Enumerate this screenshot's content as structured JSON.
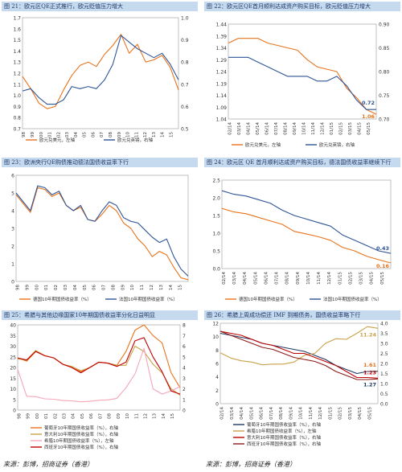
{
  "colors": {
    "orange": "#e8731b",
    "blue": "#2f5597",
    "pink": "#f4a6b7",
    "red": "#c00000",
    "gold": "#c9a24a",
    "darkred": "#8b1a1a",
    "navy": "#1f3864",
    "title_bg": "#c5d9ef"
  },
  "sources": {
    "left": "来源：彭博，招商证券（香港）",
    "right": "来源：彭博，招商证券（香港）"
  },
  "panels": [
    {
      "id": "c21",
      "title": "图 21：欧元区QE正式推行，欧元贬值压力增大"
    },
    {
      "id": "c22",
      "title": "图 22：欧元区QE首月顺利达成资产购买目标，欧元贬值压力增大"
    },
    {
      "id": "c23",
      "title": "图 23：欧洲央行QE购债推动德法国债收益率下行"
    },
    {
      "id": "c24",
      "title": "图 24：欧元区 QE 首月顺利达成资产购买目标，德法国债收益率继续下行"
    },
    {
      "id": "c25",
      "title": "图 25：希腊与其他边缘国家10年期国债收益率分化日益明显"
    },
    {
      "id": "c26",
      "title": "图 26：希腊上周成功偿还 IMF 到期债务，国债收益率略下行"
    }
  ],
  "chart_data": [
    {
      "id": "c21",
      "type": "line",
      "x_ticks": [
        "98",
        "99",
        "00",
        "01",
        "02",
        "03",
        "04",
        "05",
        "06",
        "07",
        "08",
        "09",
        "10",
        "11",
        "12",
        "13",
        "14",
        "15"
      ],
      "left_axis": {
        "ylim": [
          0.7,
          1.7
        ],
        "ticks": [
          "0.7",
          "0.8",
          "0.9",
          "1.0",
          "1.1",
          "1.2",
          "1.3",
          "1.4",
          "1.5",
          "1.6",
          "1.7"
        ]
      },
      "right_axis": {
        "ylim": [
          0.5,
          1.0
        ],
        "ticks": [
          "0.5",
          "0.6",
          "0.7",
          "0.8",
          "0.9",
          "1.0"
        ]
      },
      "series": [
        {
          "name": "欧元兑美元，左轴",
          "color": "orange",
          "axis": "left",
          "values": [
            1.17,
            1.06,
            0.93,
            0.88,
            0.9,
            1.05,
            1.18,
            1.27,
            1.3,
            1.26,
            1.37,
            1.45,
            1.55,
            1.38,
            1.46,
            1.3,
            1.32,
            1.36,
            1.25,
            1.05
          ]
        },
        {
          "name": "欧元兑英镑，右轴",
          "color": "blue",
          "axis": "right",
          "values": [
            0.67,
            0.68,
            0.64,
            0.61,
            0.61,
            0.63,
            0.69,
            0.68,
            0.69,
            0.68,
            0.72,
            0.79,
            0.92,
            0.89,
            0.86,
            0.84,
            0.82,
            0.84,
            0.79,
            0.72
          ]
        }
      ]
    },
    {
      "id": "c22",
      "type": "line",
      "x_ticks": [
        "02/14",
        "03/14",
        "04/14",
        "05/14",
        "06/14",
        "07/14",
        "08/14",
        "09/14",
        "10/14",
        "11/14",
        "12/14",
        "01/15",
        "02/15",
        "03/15",
        "04/15",
        "05/15"
      ],
      "left_axis": {
        "ylim": [
          1.04,
          1.44
        ],
        "ticks": [
          "1.04",
          "1.09",
          "1.14",
          "1.19",
          "1.24",
          "1.29",
          "1.34",
          "1.39",
          "1.44"
        ]
      },
      "right_axis": {
        "ylim": [
          0.7,
          0.9
        ],
        "ticks": [
          "0.70",
          "0.75",
          "0.80",
          "0.85",
          "0.90"
        ]
      },
      "series": [
        {
          "name": "欧元兑美元，左轴",
          "color": "orange",
          "axis": "left",
          "values": [
            1.36,
            1.38,
            1.38,
            1.38,
            1.36,
            1.35,
            1.34,
            1.33,
            1.29,
            1.26,
            1.25,
            1.24,
            1.17,
            1.13,
            1.08,
            1.06
          ]
        },
        {
          "name": "欧元兑英镑，右轴",
          "color": "blue",
          "axis": "right",
          "values": [
            0.83,
            0.83,
            0.83,
            0.82,
            0.81,
            0.8,
            0.79,
            0.79,
            0.79,
            0.78,
            0.78,
            0.79,
            0.77,
            0.74,
            0.72,
            0.72
          ]
        }
      ],
      "annotations": [
        {
          "text": "0.72",
          "color": "blue"
        },
        {
          "text": "1.06",
          "color": "orange"
        }
      ]
    },
    {
      "id": "c23",
      "type": "line",
      "x_ticks": [
        "98",
        "99",
        "00",
        "01",
        "02",
        "03",
        "04",
        "05",
        "06",
        "07",
        "08",
        "09",
        "10",
        "11",
        "12",
        "13",
        "14",
        "15"
      ],
      "left_axis": {
        "ylim": [
          0,
          6
        ],
        "ticks": [
          "0",
          "1",
          "2",
          "3",
          "4",
          "5",
          "6"
        ]
      },
      "series": [
        {
          "name": "德国10年期国债收益率（%）",
          "color": "orange",
          "values": [
            4.9,
            4.4,
            3.9,
            5.3,
            5.2,
            4.8,
            5.0,
            4.3,
            4.0,
            4.2,
            3.5,
            3.4,
            3.8,
            4.3,
            4.0,
            3.3,
            3.0,
            2.4,
            2.0,
            1.4,
            1.7,
            1.5,
            0.8,
            0.2,
            0.1
          ]
        },
        {
          "name": "法国10年期国债收益率（%）",
          "color": "blue",
          "values": [
            5.0,
            4.5,
            4.0,
            5.4,
            5.3,
            4.9,
            5.1,
            4.3,
            4.0,
            4.3,
            3.5,
            3.4,
            4.0,
            4.5,
            4.3,
            3.6,
            3.4,
            3.3,
            2.9,
            2.5,
            2.2,
            2.4,
            1.4,
            0.7,
            0.3
          ]
        }
      ]
    },
    {
      "id": "c24",
      "type": "line",
      "x_ticks": [
        "02/14",
        "03/14",
        "04/14",
        "05/14",
        "06/14",
        "07/14",
        "08/14",
        "09/14",
        "10/14",
        "11/14",
        "12/14",
        "01/15",
        "02/15",
        "03/15",
        "04/15",
        "05/15"
      ],
      "left_axis": {
        "ylim": [
          0,
          2.5
        ],
        "ticks": [
          "0.0",
          "0.5",
          "1.0",
          "1.5",
          "2.0",
          "2.5"
        ]
      },
      "series": [
        {
          "name": "德国10年期国债收益率（%）",
          "color": "orange",
          "values": [
            1.7,
            1.6,
            1.55,
            1.45,
            1.35,
            1.25,
            1.05,
            0.98,
            0.9,
            0.8,
            0.6,
            0.5,
            0.35,
            0.25,
            0.16
          ]
        },
        {
          "name": "法国10年期国债收益率（%）",
          "color": "blue",
          "values": [
            2.2,
            2.1,
            2.05,
            1.95,
            1.85,
            1.65,
            1.5,
            1.4,
            1.3,
            1.2,
            0.95,
            0.8,
            0.65,
            0.5,
            0.43
          ]
        }
      ],
      "annotations": [
        {
          "text": "0.43",
          "color": "blue"
        },
        {
          "text": "0.16",
          "color": "orange"
        }
      ]
    },
    {
      "id": "c25",
      "type": "line",
      "x_ticks": [
        "98",
        "99",
        "00",
        "01",
        "02",
        "03",
        "04",
        "05",
        "06",
        "07",
        "08",
        "09",
        "10",
        "11",
        "12",
        "13",
        "14",
        "15"
      ],
      "left_axis": {
        "ylim": [
          0,
          40
        ],
        "ticks": [
          "0",
          "5",
          "10",
          "15",
          "20",
          "25",
          "30",
          "35",
          "40"
        ]
      },
      "right_axis": {
        "ylim": [
          0,
          8
        ],
        "ticks": [
          "0",
          "1",
          "2",
          "3",
          "4",
          "5",
          "6",
          "7",
          "8"
        ]
      },
      "series": [
        {
          "name": "葡萄牙10年期国债收益率（%），右轴",
          "color": "orange",
          "axis": "right",
          "values": [
            4.9,
            4.6,
            5.5,
            5.1,
            4.9,
            4.3,
            4.0,
            3.6,
            4.0,
            4.5,
            4.4,
            4.2,
            5.5,
            7.5,
            11.0,
            7.0,
            6.3,
            3.5,
            2.1
          ]
        },
        {
          "name": "意大利10年期国债收益率（%），右轴",
          "color": "gold",
          "axis": "right",
          "values": [
            4.8,
            4.7,
            5.6,
            5.1,
            4.9,
            4.3,
            4.1,
            3.7,
            4.0,
            4.5,
            4.4,
            4.2,
            4.2,
            6.0,
            5.5,
            4.3,
            3.5,
            2.0,
            1.4
          ]
        },
        {
          "name": "希腊10年期国债收益率（%），左轴",
          "color": "pink",
          "axis": "left",
          "values": [
            19,
            6.5,
            6.3,
            5.3,
            5.1,
            4.5,
            4.3,
            3.9,
            4.1,
            4.6,
            4.8,
            5.5,
            10.5,
            17,
            29,
            10,
            7.5,
            9.0,
            11.0
          ]
        },
        {
          "name": "西班牙10年期国债收益率（%），右轴",
          "color": "red",
          "axis": "right",
          "values": [
            4.9,
            4.7,
            5.5,
            5.1,
            4.9,
            4.3,
            4.0,
            3.5,
            4.0,
            4.5,
            4.4,
            4.1,
            4.5,
            6.5,
            6.8,
            5.0,
            3.6,
            1.8,
            1.5
          ]
        }
      ]
    },
    {
      "id": "c26",
      "type": "line",
      "x_ticks": [
        "02/14",
        "03/14",
        "04/14",
        "05/14",
        "06/14",
        "07/14",
        "08/14",
        "09/14",
        "10/14",
        "11/14",
        "12/14",
        "01/15",
        "02/15",
        "03/15",
        "04/15",
        "05/15"
      ],
      "left_axis": {
        "ylim": [
          0,
          12
        ],
        "ticks": [
          "0",
          "2",
          "4",
          "6",
          "8",
          "10",
          "12"
        ]
      },
      "right_axis": {
        "ylim": [
          0,
          4
        ],
        "ticks": [
          "0.0",
          "0.5",
          "1.0",
          "1.5",
          "2.0",
          "2.5",
          "3.0",
          "3.5",
          "4.0"
        ]
      },
      "series": [
        {
          "name": "葡萄牙10年期国债收益率（%），右轴",
          "color": "navy",
          "axis": "right",
          "values": [
            3.5,
            3.4,
            3.3,
            3.2,
            3.0,
            2.9,
            2.8,
            2.7,
            2.6,
            2.4,
            2.2,
            1.9,
            1.7,
            1.5,
            1.6,
            1.61
          ]
        },
        {
          "name": "希腊10年期国债收益率（%），左轴",
          "color": "gold",
          "axis": "left",
          "values": [
            7.6,
            6.8,
            6.4,
            6.2,
            5.8,
            5.9,
            5.9,
            6.2,
            7.2,
            7.5,
            9.0,
            9.7,
            9.6,
            10.5,
            11.5,
            11.24
          ]
        },
        {
          "name": "意大利10年期国债收益率（%），右轴",
          "color": "red",
          "axis": "right",
          "values": [
            3.6,
            3.5,
            3.4,
            3.2,
            3.0,
            2.9,
            2.7,
            2.5,
            2.5,
            2.3,
            2.1,
            1.9,
            1.6,
            1.3,
            1.3,
            1.27
          ]
        },
        {
          "name": "西班牙10年期国债收益率（%），右轴",
          "color": "darkred",
          "axis": "right",
          "values": [
            3.6,
            3.4,
            3.2,
            3.0,
            2.8,
            2.7,
            2.5,
            2.3,
            2.2,
            2.1,
            1.9,
            1.6,
            1.4,
            1.2,
            1.2,
            1.23
          ]
        }
      ],
      "annotations": [
        {
          "text": "11.24",
          "color": "gold"
        },
        {
          "text": "1.61",
          "color": "orange"
        },
        {
          "text": "1.23",
          "color": "red"
        },
        {
          "text": "1.27",
          "color": "navy"
        }
      ]
    }
  ]
}
